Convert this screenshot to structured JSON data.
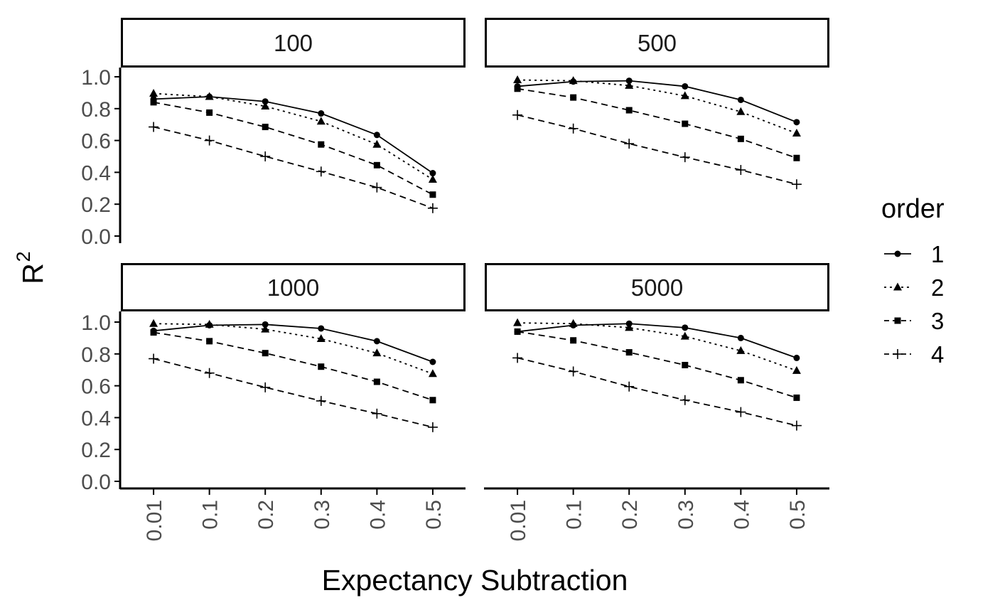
{
  "chart_data": {
    "type": "line",
    "xlabel": "Expectancy Subtraction",
    "ylabel": "R",
    "ylabel_superscript": "2",
    "categories": [
      "0.01",
      "0.1",
      "0.2",
      "0.3",
      "0.4",
      "0.5"
    ],
    "y_ticks": [
      "0.0",
      "0.2",
      "0.4",
      "0.6",
      "0.8",
      "1.0"
    ],
    "ylim": [
      0,
      1
    ],
    "legend": {
      "title": "order",
      "position": "right",
      "entries": [
        {
          "label": "1",
          "marker": "circle",
          "dash": "solid"
        },
        {
          "label": "2",
          "marker": "triangle",
          "dash": "dotted"
        },
        {
          "label": "3",
          "marker": "square",
          "dash": "dashed"
        },
        {
          "label": "4",
          "marker": "plus",
          "dash": "dashed"
        }
      ]
    },
    "panels": [
      {
        "label": "100",
        "series": [
          {
            "name": "1",
            "values": [
              0.86,
              0.875,
              0.845,
              0.77,
              0.635,
              0.395
            ]
          },
          {
            "name": "2",
            "values": [
              0.895,
              0.875,
              0.815,
              0.72,
              0.575,
              0.355
            ]
          },
          {
            "name": "3",
            "values": [
              0.84,
              0.775,
              0.685,
              0.575,
              0.445,
              0.26
            ]
          },
          {
            "name": "4",
            "values": [
              0.685,
              0.6,
              0.5,
              0.405,
              0.305,
              0.175
            ]
          }
        ]
      },
      {
        "label": "500",
        "series": [
          {
            "name": "1",
            "values": [
              0.94,
              0.97,
              0.975,
              0.94,
              0.855,
              0.715
            ]
          },
          {
            "name": "2",
            "values": [
              0.98,
              0.975,
              0.945,
              0.88,
              0.78,
              0.645
            ]
          },
          {
            "name": "3",
            "values": [
              0.925,
              0.87,
              0.79,
              0.705,
              0.61,
              0.49
            ]
          },
          {
            "name": "4",
            "values": [
              0.76,
              0.675,
              0.58,
              0.495,
              0.415,
              0.325
            ]
          }
        ]
      },
      {
        "label": "1000",
        "series": [
          {
            "name": "1",
            "values": [
              0.945,
              0.98,
              0.985,
              0.96,
              0.88,
              0.75
            ]
          },
          {
            "name": "2",
            "values": [
              0.99,
              0.985,
              0.955,
              0.895,
              0.805,
              0.675
            ]
          },
          {
            "name": "3",
            "values": [
              0.935,
              0.88,
              0.805,
              0.72,
              0.625,
              0.51
            ]
          },
          {
            "name": "4",
            "values": [
              0.77,
              0.68,
              0.59,
              0.505,
              0.425,
              0.34
            ]
          }
        ]
      },
      {
        "label": "5000",
        "series": [
          {
            "name": "1",
            "values": [
              0.94,
              0.98,
              0.99,
              0.965,
              0.9,
              0.775
            ]
          },
          {
            "name": "2",
            "values": [
              0.995,
              0.99,
              0.965,
              0.91,
              0.82,
              0.695
            ]
          },
          {
            "name": "3",
            "values": [
              0.94,
              0.885,
              0.81,
              0.73,
              0.635,
              0.525
            ]
          },
          {
            "name": "4",
            "values": [
              0.775,
              0.69,
              0.595,
              0.51,
              0.435,
              0.35
            ]
          }
        ]
      }
    ]
  }
}
